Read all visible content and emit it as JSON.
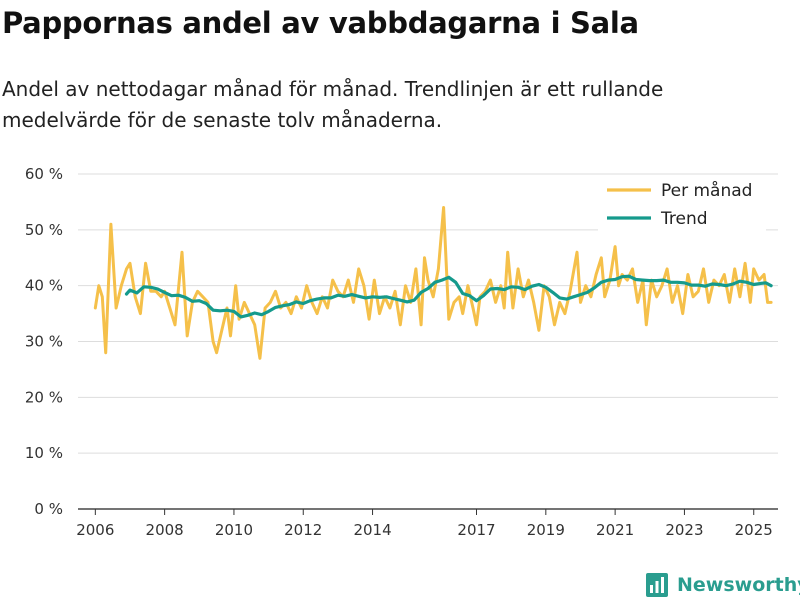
{
  "header": {
    "title": "Pappornas andel av vabbdagarna i Sala",
    "subtitle": "Andel av nettodagar månad för månad. Trendlinjen är ett rullande medelvärde för de senaste tolv månaderna."
  },
  "brand": {
    "name": "Newsworthy",
    "color": "#2a9d8f"
  },
  "chart_data": {
    "type": "line",
    "title": "Pappornas andel av vabbdagarna i Sala",
    "xlabel": "",
    "ylabel": "",
    "xlim": [
      2005.5,
      2025.7
    ],
    "ylim": [
      0,
      60
    ],
    "yticks": [
      0,
      10,
      20,
      30,
      40,
      50,
      60
    ],
    "ytick_labels": [
      "0 %",
      "10 %",
      "20 %",
      "30 %",
      "40 %",
      "50 %",
      "60 %"
    ],
    "xticks": [
      2006,
      2008,
      2010,
      2012,
      2014,
      2017,
      2019,
      2021,
      2023,
      2025
    ],
    "xtick_labels": [
      "2006",
      "2008",
      "2010",
      "2012",
      "2014",
      "2017",
      "2019",
      "2021",
      "2023",
      "2025"
    ],
    "grid": true,
    "legend_position": "top-right",
    "series": [
      {
        "name": "Per månad",
        "color": "#f5c04a",
        "points": [
          [
            2006.0,
            36
          ],
          [
            2006.1,
            40
          ],
          [
            2006.2,
            38
          ],
          [
            2006.3,
            28
          ],
          [
            2006.45,
            51
          ],
          [
            2006.6,
            36
          ],
          [
            2006.75,
            40
          ],
          [
            2006.9,
            43
          ],
          [
            2007.0,
            44
          ],
          [
            2007.15,
            38
          ],
          [
            2007.3,
            35
          ],
          [
            2007.45,
            44
          ],
          [
            2007.6,
            39
          ],
          [
            2007.75,
            39
          ],
          [
            2007.9,
            38
          ],
          [
            2008.0,
            39
          ],
          [
            2008.15,
            36
          ],
          [
            2008.3,
            33
          ],
          [
            2008.5,
            46
          ],
          [
            2008.65,
            31
          ],
          [
            2008.8,
            37
          ],
          [
            2008.95,
            39
          ],
          [
            2009.1,
            38
          ],
          [
            2009.25,
            37
          ],
          [
            2009.4,
            30
          ],
          [
            2009.5,
            28
          ],
          [
            2009.65,
            32
          ],
          [
            2009.8,
            36
          ],
          [
            2009.9,
            31
          ],
          [
            2010.05,
            40
          ],
          [
            2010.15,
            34
          ],
          [
            2010.3,
            37
          ],
          [
            2010.45,
            35
          ],
          [
            2010.6,
            33
          ],
          [
            2010.75,
            27
          ],
          [
            2010.9,
            36
          ],
          [
            2011.05,
            37
          ],
          [
            2011.2,
            39
          ],
          [
            2011.35,
            36
          ],
          [
            2011.5,
            37
          ],
          [
            2011.65,
            35
          ],
          [
            2011.8,
            38
          ],
          [
            2011.95,
            36
          ],
          [
            2012.1,
            40
          ],
          [
            2012.25,
            37
          ],
          [
            2012.4,
            35
          ],
          [
            2012.55,
            38
          ],
          [
            2012.7,
            36
          ],
          [
            2012.85,
            41
          ],
          [
            2013.0,
            39
          ],
          [
            2013.15,
            38
          ],
          [
            2013.3,
            41
          ],
          [
            2013.45,
            37
          ],
          [
            2013.6,
            43
          ],
          [
            2013.75,
            40
          ],
          [
            2013.9,
            34
          ],
          [
            2014.05,
            41
          ],
          [
            2014.2,
            35
          ],
          [
            2014.35,
            38
          ],
          [
            2014.5,
            36
          ],
          [
            2014.65,
            39
          ],
          [
            2014.8,
            33
          ],
          [
            2014.95,
            40
          ],
          [
            2015.1,
            37
          ],
          [
            2015.25,
            43
          ],
          [
            2015.4,
            33
          ],
          [
            2015.5,
            45
          ],
          [
            2015.6,
            41
          ],
          [
            2015.75,
            38
          ],
          [
            2015.9,
            43
          ],
          [
            2016.05,
            54
          ],
          [
            2016.2,
            34
          ],
          [
            2016.35,
            37
          ],
          [
            2016.5,
            38
          ],
          [
            2016.6,
            35
          ],
          [
            2016.75,
            40
          ],
          [
            2016.9,
            36
          ],
          [
            2017.0,
            33
          ],
          [
            2017.1,
            38
          ],
          [
            2017.25,
            39
          ],
          [
            2017.4,
            41
          ],
          [
            2017.55,
            37
          ],
          [
            2017.7,
            40
          ],
          [
            2017.8,
            36
          ],
          [
            2017.9,
            46
          ],
          [
            2018.05,
            36
          ],
          [
            2018.2,
            43
          ],
          [
            2018.35,
            38
          ],
          [
            2018.5,
            41
          ],
          [
            2018.65,
            37
          ],
          [
            2018.8,
            32
          ],
          [
            2018.95,
            40
          ],
          [
            2019.1,
            38
          ],
          [
            2019.25,
            33
          ],
          [
            2019.4,
            37
          ],
          [
            2019.55,
            35
          ],
          [
            2019.7,
            39
          ],
          [
            2019.9,
            46
          ],
          [
            2020.0,
            37
          ],
          [
            2020.15,
            40
          ],
          [
            2020.3,
            38
          ],
          [
            2020.45,
            42
          ],
          [
            2020.6,
            45
          ],
          [
            2020.7,
            38
          ],
          [
            2020.85,
            41
          ],
          [
            2021.0,
            47
          ],
          [
            2021.1,
            40
          ],
          [
            2021.2,
            42
          ],
          [
            2021.35,
            41
          ],
          [
            2021.5,
            43
          ],
          [
            2021.65,
            37
          ],
          [
            2021.8,
            41
          ],
          [
            2021.9,
            33
          ],
          [
            2022.05,
            41
          ],
          [
            2022.2,
            38
          ],
          [
            2022.35,
            40
          ],
          [
            2022.5,
            43
          ],
          [
            2022.65,
            37
          ],
          [
            2022.8,
            40
          ],
          [
            2022.95,
            35
          ],
          [
            2023.1,
            42
          ],
          [
            2023.25,
            38
          ],
          [
            2023.4,
            39
          ],
          [
            2023.55,
            43
          ],
          [
            2023.7,
            37
          ],
          [
            2023.85,
            41
          ],
          [
            2024.0,
            40
          ],
          [
            2024.15,
            42
          ],
          [
            2024.3,
            37
          ],
          [
            2024.45,
            43
          ],
          [
            2024.6,
            38
          ],
          [
            2024.75,
            44
          ],
          [
            2024.9,
            37
          ],
          [
            2025.0,
            43
          ],
          [
            2025.15,
            41
          ],
          [
            2025.3,
            42
          ],
          [
            2025.4,
            37
          ],
          [
            2025.5,
            37
          ]
        ]
      },
      {
        "name": "Trend",
        "color": "#159a8c",
        "points": [
          [
            2006.9,
            38.5
          ],
          [
            2007.0,
            39.2
          ],
          [
            2007.2,
            38.7
          ],
          [
            2007.4,
            39.8
          ],
          [
            2007.6,
            39.7
          ],
          [
            2007.8,
            39.4
          ],
          [
            2008.0,
            38.8
          ],
          [
            2008.2,
            38.2
          ],
          [
            2008.4,
            38.3
          ],
          [
            2008.6,
            37.9
          ],
          [
            2008.8,
            37.2
          ],
          [
            2009.0,
            37.3
          ],
          [
            2009.2,
            36.8
          ],
          [
            2009.4,
            35.6
          ],
          [
            2009.6,
            35.5
          ],
          [
            2009.8,
            35.6
          ],
          [
            2010.0,
            35.4
          ],
          [
            2010.2,
            34.4
          ],
          [
            2010.4,
            34.7
          ],
          [
            2010.6,
            35.1
          ],
          [
            2010.8,
            34.8
          ],
          [
            2011.0,
            35.4
          ],
          [
            2011.2,
            36.1
          ],
          [
            2011.4,
            36.4
          ],
          [
            2011.6,
            36.6
          ],
          [
            2011.8,
            37.1
          ],
          [
            2012.0,
            36.8
          ],
          [
            2012.2,
            37.3
          ],
          [
            2012.4,
            37.6
          ],
          [
            2012.6,
            37.8
          ],
          [
            2012.8,
            37.8
          ],
          [
            2013.0,
            38.3
          ],
          [
            2013.2,
            38.1
          ],
          [
            2013.4,
            38.4
          ],
          [
            2013.6,
            38.1
          ],
          [
            2013.8,
            37.8
          ],
          [
            2014.0,
            38.0
          ],
          [
            2014.2,
            37.9
          ],
          [
            2014.4,
            38.0
          ],
          [
            2014.6,
            37.7
          ],
          [
            2014.8,
            37.4
          ],
          [
            2015.0,
            37.1
          ],
          [
            2015.2,
            37.4
          ],
          [
            2015.4,
            38.8
          ],
          [
            2015.6,
            39.5
          ],
          [
            2015.8,
            40.6
          ],
          [
            2016.0,
            41.0
          ],
          [
            2016.2,
            41.5
          ],
          [
            2016.4,
            40.6
          ],
          [
            2016.6,
            38.6
          ],
          [
            2016.8,
            38.2
          ],
          [
            2017.0,
            37.3
          ],
          [
            2017.2,
            38.2
          ],
          [
            2017.4,
            39.4
          ],
          [
            2017.6,
            39.5
          ],
          [
            2017.8,
            39.3
          ],
          [
            2018.0,
            39.8
          ],
          [
            2018.2,
            39.7
          ],
          [
            2018.4,
            39.3
          ],
          [
            2018.6,
            39.9
          ],
          [
            2018.8,
            40.2
          ],
          [
            2019.0,
            39.7
          ],
          [
            2019.2,
            38.8
          ],
          [
            2019.4,
            37.8
          ],
          [
            2019.6,
            37.6
          ],
          [
            2019.8,
            38.0
          ],
          [
            2020.0,
            38.4
          ],
          [
            2020.2,
            38.8
          ],
          [
            2020.4,
            39.6
          ],
          [
            2020.6,
            40.6
          ],
          [
            2020.8,
            41.0
          ],
          [
            2021.0,
            41.1
          ],
          [
            2021.2,
            41.6
          ],
          [
            2021.4,
            41.7
          ],
          [
            2021.6,
            41.1
          ],
          [
            2021.8,
            41.0
          ],
          [
            2022.0,
            40.9
          ],
          [
            2022.2,
            40.9
          ],
          [
            2022.4,
            41.0
          ],
          [
            2022.6,
            40.6
          ],
          [
            2022.8,
            40.6
          ],
          [
            2023.0,
            40.5
          ],
          [
            2023.2,
            40.1
          ],
          [
            2023.4,
            40.1
          ],
          [
            2023.6,
            39.9
          ],
          [
            2023.8,
            40.3
          ],
          [
            2024.0,
            40.2
          ],
          [
            2024.2,
            40.0
          ],
          [
            2024.4,
            40.3
          ],
          [
            2024.6,
            40.8
          ],
          [
            2024.8,
            40.6
          ],
          [
            2025.0,
            40.2
          ],
          [
            2025.2,
            40.4
          ],
          [
            2025.35,
            40.5
          ],
          [
            2025.5,
            40.0
          ]
        ]
      }
    ]
  }
}
